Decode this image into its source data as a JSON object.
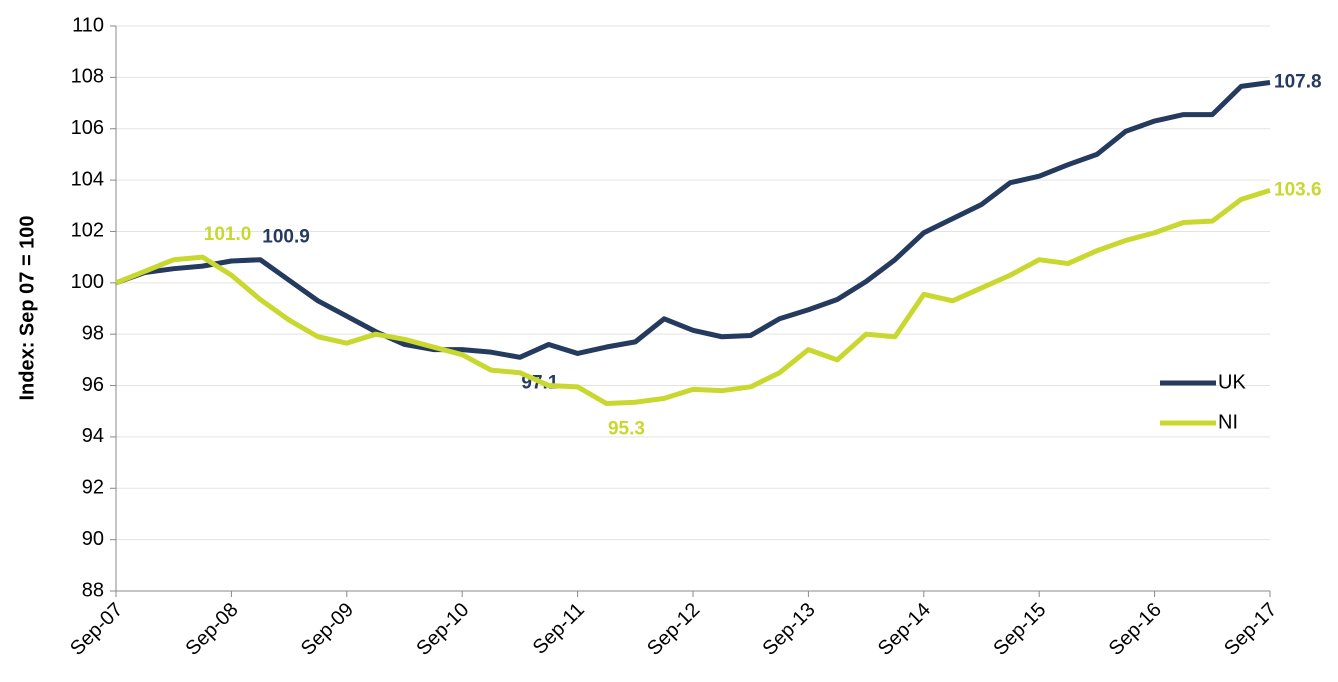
{
  "chart_data": {
    "type": "line",
    "y_label": "Index: Sep 07 = 100",
    "categories": [
      "Sep-07",
      null,
      null,
      null,
      "Sep-08",
      null,
      null,
      null,
      "Sep-09",
      null,
      null,
      null,
      "Sep-10",
      null,
      null,
      null,
      "Sep-11",
      null,
      null,
      null,
      "Sep-12",
      null,
      null,
      null,
      "Sep-13",
      null,
      null,
      null,
      "Sep-14",
      null,
      null,
      null,
      "Sep-15",
      null,
      null,
      null,
      "Sep-16",
      null,
      null,
      null,
      "Sep-17"
    ],
    "series": [
      {
        "name": "UK",
        "color": "#243a5e",
        "values": [
          100.0,
          100.4,
          100.55,
          100.65,
          100.85,
          100.9,
          100.1,
          99.3,
          98.7,
          98.1,
          97.6,
          97.4,
          97.4,
          97.3,
          97.1,
          97.6,
          97.25,
          97.5,
          97.7,
          98.6,
          98.15,
          97.9,
          97.95,
          98.6,
          98.95,
          99.35,
          100.05,
          100.9,
          101.95,
          102.5,
          103.05,
          103.9,
          104.15,
          104.6,
          105.0,
          105.9,
          106.3,
          106.55,
          106.55,
          107.65,
          107.8
        ],
        "value_labels": [
          null,
          null,
          null,
          null,
          null,
          "100.9",
          null,
          null,
          null,
          null,
          null,
          null,
          null,
          null,
          "97.1",
          null,
          null,
          null,
          null,
          null,
          null,
          null,
          null,
          null,
          null,
          null,
          null,
          null,
          null,
          null,
          null,
          null,
          null,
          null,
          null,
          null,
          null,
          null,
          null,
          null,
          "107.8"
        ]
      },
      {
        "name": "NI",
        "color": "#c9d82e",
        "values": [
          100.0,
          100.45,
          100.9,
          101.0,
          100.3,
          99.35,
          98.55,
          97.9,
          97.65,
          98.0,
          97.8,
          97.5,
          97.2,
          96.6,
          96.5,
          96.0,
          95.95,
          95.3,
          95.35,
          95.5,
          95.85,
          95.8,
          95.95,
          96.5,
          97.4,
          97.0,
          98.0,
          97.9,
          99.55,
          99.3,
          99.8,
          100.3,
          100.9,
          100.75,
          101.25,
          101.65,
          101.95,
          102.35,
          102.4,
          103.25,
          103.6
        ],
        "value_labels": [
          null,
          null,
          null,
          "101.0",
          null,
          null,
          null,
          null,
          null,
          null,
          null,
          null,
          null,
          null,
          null,
          null,
          null,
          "95.3",
          null,
          null,
          null,
          null,
          null,
          null,
          null,
          null,
          null,
          null,
          null,
          null,
          null,
          null,
          null,
          null,
          null,
          null,
          null,
          null,
          null,
          null,
          "103.6"
        ]
      }
    ],
    "ylim": [
      88,
      110
    ],
    "yticks": [
      88,
      90,
      92,
      94,
      96,
      98,
      100,
      102,
      104,
      106,
      108,
      110
    ],
    "grid": true,
    "legend": "right"
  }
}
